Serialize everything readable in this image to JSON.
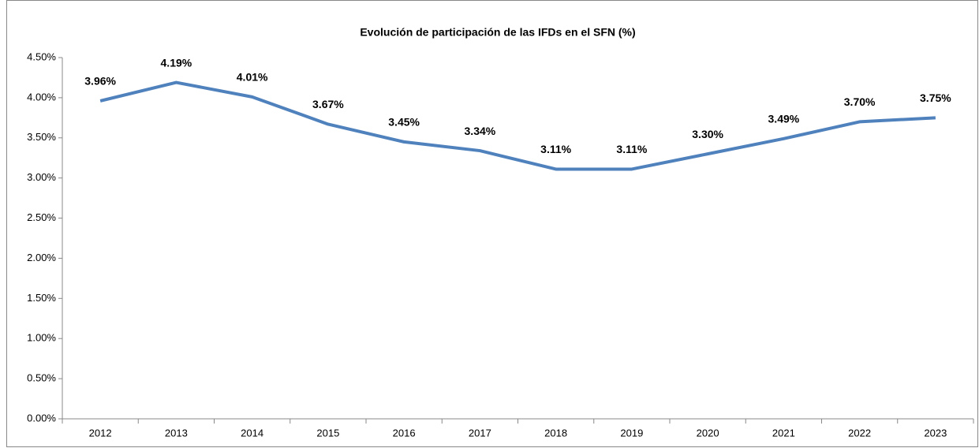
{
  "chart_data": {
    "type": "line",
    "title": "Evolución de participación de las IFDs en el SFN (%)",
    "categories": [
      "2012",
      "2013",
      "2014",
      "2015",
      "2016",
      "2017",
      "2018",
      "2019",
      "2020",
      "2021",
      "2022",
      "2023"
    ],
    "series": [
      {
        "name": "IFDs",
        "color": "#4f81bd",
        "values": [
          3.96,
          4.19,
          4.01,
          3.67,
          3.45,
          3.34,
          3.11,
          3.11,
          3.3,
          3.49,
          3.7,
          3.75
        ],
        "value_labels": [
          "3.96%",
          "4.19%",
          "4.01%",
          "3.67%",
          "3.45%",
          "3.34%",
          "3.11%",
          "3.11%",
          "3.30%",
          "3.49%",
          "3.70%",
          "3.75%"
        ]
      }
    ],
    "ylim": [
      0,
      4.5
    ],
    "yticks": [
      {
        "value": 0,
        "label": "0.00%"
      },
      {
        "value": 0.5,
        "label": "0.50%"
      },
      {
        "value": 1,
        "label": "1.00%"
      },
      {
        "value": 1.5,
        "label": "1.50%"
      },
      {
        "value": 2,
        "label": "2.00%"
      },
      {
        "value": 2.5,
        "label": "2.50%"
      },
      {
        "value": 3,
        "label": "3.00%"
      },
      {
        "value": 3.5,
        "label": "3.50%"
      },
      {
        "value": 4,
        "label": "4.00%"
      },
      {
        "value": 4.5,
        "label": "4.50%"
      }
    ],
    "grid": false
  }
}
